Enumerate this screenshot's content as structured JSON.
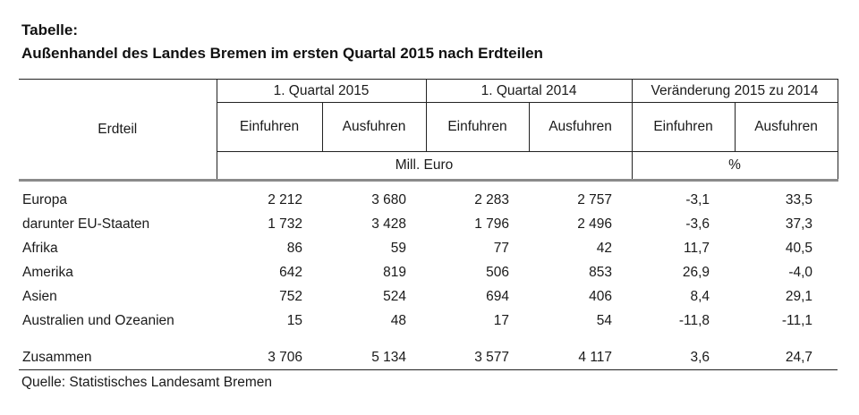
{
  "title": {
    "label": "Tabelle:",
    "heading": "Außenhandel des Landes Bremen im ersten Quartal 2015 nach Erdteilen"
  },
  "table": {
    "row_header": "Erdteil",
    "col_groups": [
      {
        "label": "1. Quartal 2015"
      },
      {
        "label": "1. Quartal 2014"
      },
      {
        "label": "Veränderung 2015 zu 2014"
      }
    ],
    "sub_headers": [
      "Einfuhren",
      "Ausfuhren",
      "Einfuhren",
      "Ausfuhren",
      "Einfuhren",
      "Ausfuhren"
    ],
    "units": [
      {
        "label": "Mill. Euro"
      },
      {
        "label": "%"
      }
    ],
    "rows": [
      {
        "label": "Europa",
        "values": [
          "2 212",
          "3 680",
          "2 283",
          "2 757",
          "-3,1",
          "33,5"
        ]
      },
      {
        "label": "darunter EU-Staaten",
        "values": [
          "1 732",
          "3 428",
          "1 796",
          "2 496",
          "-3,6",
          "37,3"
        ]
      },
      {
        "label": "Afrika",
        "values": [
          "86",
          "59",
          "77",
          "42",
          "11,7",
          "40,5"
        ]
      },
      {
        "label": "Amerika",
        "values": [
          "642",
          "819",
          "506",
          "853",
          "26,9",
          "-4,0"
        ]
      },
      {
        "label": "Asien",
        "values": [
          "752",
          "524",
          "694",
          "406",
          "8,4",
          "29,1"
        ]
      },
      {
        "label": "Australien und Ozeanien",
        "values": [
          "15",
          "48",
          "17",
          "54",
          "-11,8",
          "-11,1"
        ]
      }
    ],
    "total_row": {
      "label": "Zusammen",
      "values": [
        "3 706",
        "5 134",
        "3 577",
        "4 117",
        "3,6",
        "24,7"
      ]
    }
  },
  "source": "Quelle: Statistisches Landesamt Bremen",
  "colors": {
    "text": "#1a1a1a",
    "thin_rule": "#222222",
    "thick_rule": "#8a8a8a",
    "background": "#ffffff"
  }
}
